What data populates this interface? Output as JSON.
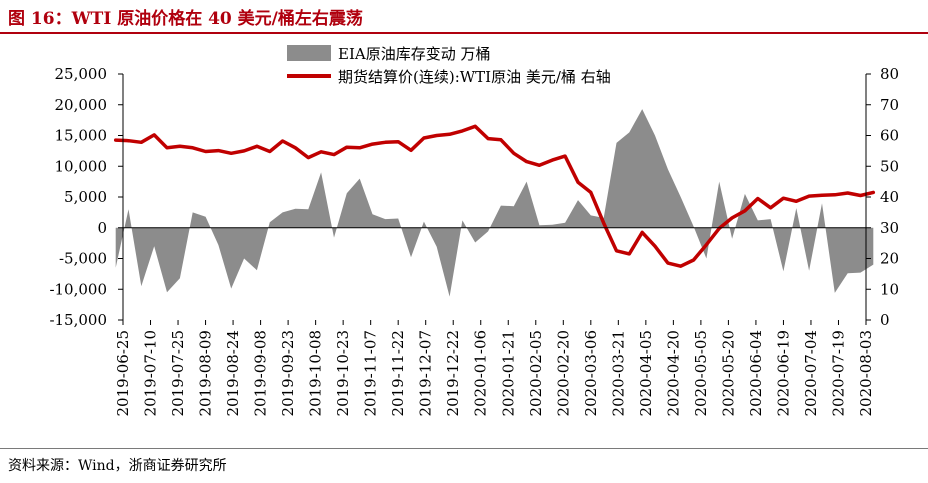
{
  "title": "图 16：WTI 原油价格在 40 美元/桶左右震荡",
  "source": "资料来源：Wind，浙商证券研究所",
  "colors": {
    "title": "#b0000e",
    "bar": "#8c8c8c",
    "line": "#c00000"
  },
  "chart_data": {
    "type": "bar+line",
    "legend_position": "top-center",
    "grid": false,
    "x_tick_labels": [
      "2019-06-25",
      "2019-07-10",
      "2019-07-25",
      "2019-08-09",
      "2019-08-24",
      "2019-09-08",
      "2019-09-23",
      "2019-10-08",
      "2019-10-23",
      "2019-11-07",
      "2019-11-22",
      "2019-12-07",
      "2019-12-22",
      "2020-01-06",
      "2020-01-21",
      "2020-02-05",
      "2020-02-20",
      "2020-03-06",
      "2020-03-21",
      "2020-04-05",
      "2020-04-20",
      "2020-05-05",
      "2020-05-20",
      "2020-06-04",
      "2020-06-19",
      "2020-07-04",
      "2020-07-19",
      "2020-08-03"
    ],
    "y_left": {
      "lim": [
        -15000,
        25000
      ],
      "ticks": [
        -15000,
        -10000,
        -5000,
        0,
        5000,
        10000,
        15000,
        20000,
        25000
      ],
      "tick_labels": [
        "-15,000",
        "-10,000",
        "-5,000",
        "0",
        "5,000",
        "10,000",
        "15,000",
        "20,000",
        "25,000"
      ]
    },
    "y_right": {
      "lim": [
        0,
        80
      ],
      "ticks": [
        0,
        10,
        20,
        30,
        40,
        50,
        60,
        70,
        80
      ],
      "tick_labels": [
        "0",
        "10",
        "20",
        "30",
        "40",
        "50",
        "60",
        "70",
        "80"
      ]
    },
    "series": [
      {
        "name": "EIA原油库存变动 万桶",
        "kind": "area",
        "axis": "left",
        "x": [
          "2019-06-21",
          "2019-06-28",
          "2019-07-05",
          "2019-07-12",
          "2019-07-19",
          "2019-07-26",
          "2019-08-02",
          "2019-08-09",
          "2019-08-16",
          "2019-08-23",
          "2019-08-30",
          "2019-09-06",
          "2019-09-13",
          "2019-09-20",
          "2019-09-27",
          "2019-10-04",
          "2019-10-11",
          "2019-10-18",
          "2019-10-25",
          "2019-11-01",
          "2019-11-08",
          "2019-11-15",
          "2019-11-22",
          "2019-11-29",
          "2019-12-06",
          "2019-12-13",
          "2019-12-20",
          "2019-12-27",
          "2020-01-03",
          "2020-01-10",
          "2020-01-17",
          "2020-01-24",
          "2020-01-31",
          "2020-02-07",
          "2020-02-14",
          "2020-02-21",
          "2020-02-28",
          "2020-03-06",
          "2020-03-13",
          "2020-03-20",
          "2020-03-27",
          "2020-04-03",
          "2020-04-10",
          "2020-04-17",
          "2020-04-24",
          "2020-05-01",
          "2020-05-08",
          "2020-05-15",
          "2020-05-22",
          "2020-05-29",
          "2020-06-05",
          "2020-06-12",
          "2020-06-19",
          "2020-06-26",
          "2020-07-03",
          "2020-07-10",
          "2020-07-17",
          "2020-07-24",
          "2020-07-31",
          "2020-08-07"
        ],
        "values": [
          -6500,
          3000,
          -9500,
          -3000,
          -10500,
          -8200,
          2500,
          1800,
          -2800,
          -9900,
          -5000,
          -6900,
          900,
          2500,
          3100,
          3000,
          9000,
          -1600,
          5600,
          8000,
          2200,
          1400,
          1500,
          -4800,
          1000,
          -3100,
          -11200,
          1200,
          -2400,
          -600,
          3600,
          3500,
          7500,
          400,
          500,
          800,
          4500,
          2000,
          1600,
          13800,
          15500,
          19300,
          15000,
          9500,
          5000,
          200,
          -5000,
          7500,
          -1800,
          5500,
          1200,
          1400,
          -7100,
          3200,
          -7000,
          4000,
          -10600,
          -7400,
          -7300,
          -6000
        ]
      },
      {
        "name": "期货结算价(连续):WTI原油 美元/桶 右轴",
        "kind": "line",
        "axis": "right",
        "x": [
          "2019-06-21",
          "2019-06-28",
          "2019-07-05",
          "2019-07-12",
          "2019-07-19",
          "2019-07-26",
          "2019-08-02",
          "2019-08-09",
          "2019-08-16",
          "2019-08-23",
          "2019-08-30",
          "2019-09-06",
          "2019-09-13",
          "2019-09-20",
          "2019-09-27",
          "2019-10-04",
          "2019-10-11",
          "2019-10-18",
          "2019-10-25",
          "2019-11-01",
          "2019-11-08",
          "2019-11-15",
          "2019-11-22",
          "2019-11-29",
          "2019-12-06",
          "2019-12-13",
          "2019-12-20",
          "2019-12-27",
          "2020-01-03",
          "2020-01-10",
          "2020-01-17",
          "2020-01-24",
          "2020-01-31",
          "2020-02-07",
          "2020-02-14",
          "2020-02-21",
          "2020-02-28",
          "2020-03-06",
          "2020-03-13",
          "2020-03-20",
          "2020-03-27",
          "2020-04-03",
          "2020-04-10",
          "2020-04-17",
          "2020-04-24",
          "2020-05-01",
          "2020-05-08",
          "2020-05-15",
          "2020-05-22",
          "2020-05-29",
          "2020-06-05",
          "2020-06-12",
          "2020-06-19",
          "2020-06-26",
          "2020-07-03",
          "2020-07-10",
          "2020-07-17",
          "2020-07-24",
          "2020-07-31",
          "2020-08-07"
        ],
        "values": [
          58.5,
          58.3,
          57.8,
          60.2,
          56.0,
          56.5,
          56.0,
          54.8,
          55.1,
          54.2,
          55.0,
          56.5,
          54.8,
          58.2,
          56.0,
          52.8,
          54.7,
          53.8,
          56.2,
          56.0,
          57.2,
          57.8,
          58.0,
          55.2,
          59.2,
          60.0,
          60.4,
          61.5,
          63.0,
          59.0,
          58.6,
          54.2,
          51.5,
          50.3,
          52.0,
          53.3,
          44.8,
          41.5,
          31.5,
          22.5,
          21.5,
          28.5,
          24.0,
          18.5,
          17.5,
          19.5,
          24.5,
          29.8,
          33.2,
          35.5,
          39.5,
          36.5,
          39.6,
          38.6,
          40.3,
          40.6,
          40.7,
          41.3,
          40.5,
          41.5
        ]
      }
    ]
  }
}
